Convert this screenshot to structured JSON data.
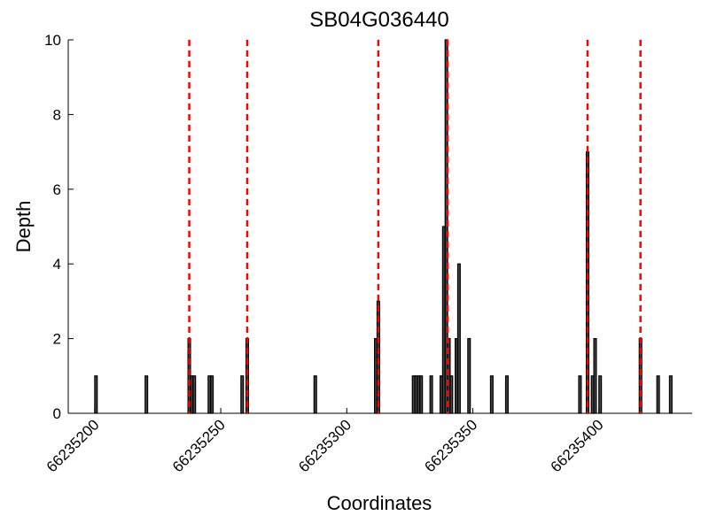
{
  "chart_data": {
    "type": "bar",
    "title": "SB04G036440",
    "x_label": "Coordinates",
    "y_label": "Depth",
    "x": [
      66235200,
      66235220,
      66235237,
      66235238,
      66235239,
      66235245,
      66235246,
      66235258,
      66235260,
      66235287,
      66235311,
      66235312,
      66235326,
      66235327,
      66235328,
      66235329,
      66235333,
      66235337,
      66235338,
      66235339,
      66235340,
      66235341,
      66235343,
      66235344,
      66235348,
      66235357,
      66235363,
      66235392,
      66235395,
      66235397,
      66235398,
      66235400,
      66235416,
      66235423,
      66235428
    ],
    "values": [
      1,
      1,
      2,
      1,
      1,
      1,
      1,
      1,
      2,
      1,
      2,
      3,
      1,
      1,
      1,
      1,
      1,
      1,
      5,
      10,
      2,
      1,
      2,
      4,
      2,
      1,
      1,
      1,
      7,
      1,
      2,
      1,
      2,
      1,
      1
    ],
    "color": "#444444",
    "vlines": [
      66235237.5,
      66235260.5,
      66235312.5,
      66235340,
      66235395.5,
      66235416.5
    ],
    "vline_color": "#ff0000",
    "xlim": [
      66235189.5,
      66235437
    ],
    "ylim": [
      0,
      10
    ],
    "xticks": [
      66235200,
      66235250,
      66235300,
      66235350,
      66235400
    ],
    "yticks": [
      0,
      2,
      4,
      6,
      8,
      10
    ]
  }
}
